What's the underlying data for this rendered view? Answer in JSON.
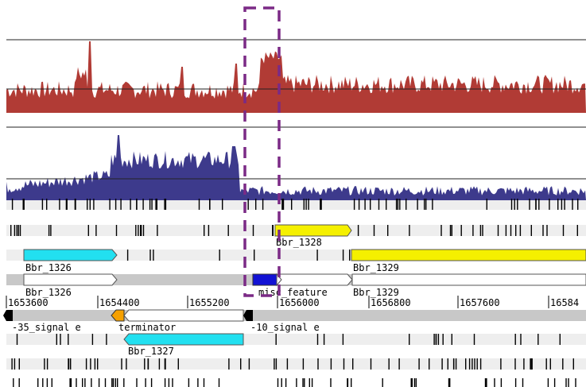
{
  "colors": {
    "coverage_top": "#b13b35",
    "coverage_bottom": "#3d3a8c",
    "highlight_box": "#7b2a86",
    "gene_yellow": "#f5f000",
    "gene_cyan": "#22e0f0",
    "orange_feature": "#f5a000",
    "blue_feature": "#1212d4",
    "track_grey": "#c8c8c8",
    "track_light": "#eeeeee"
  },
  "labels": {
    "bbr_1328": "Bbr_1328",
    "bbr_1326_a": "Bbr_1326",
    "bbr_1329_a": "Bbr_1329",
    "bbr_1326_b": "Bbr_1326",
    "misc_feature": "misc_feature",
    "bbr_1329_b": "Bbr_1329",
    "signal_35": "-35_signal e",
    "terminator": "terminator",
    "signal_10": "-10_signal e",
    "bbr_1327": "Bbr_1327"
  },
  "ruler": {
    "ticks": [
      "1653600",
      "1654400",
      "1655200",
      "1656000",
      "1656800",
      "1657600",
      "16584"
    ]
  }
}
